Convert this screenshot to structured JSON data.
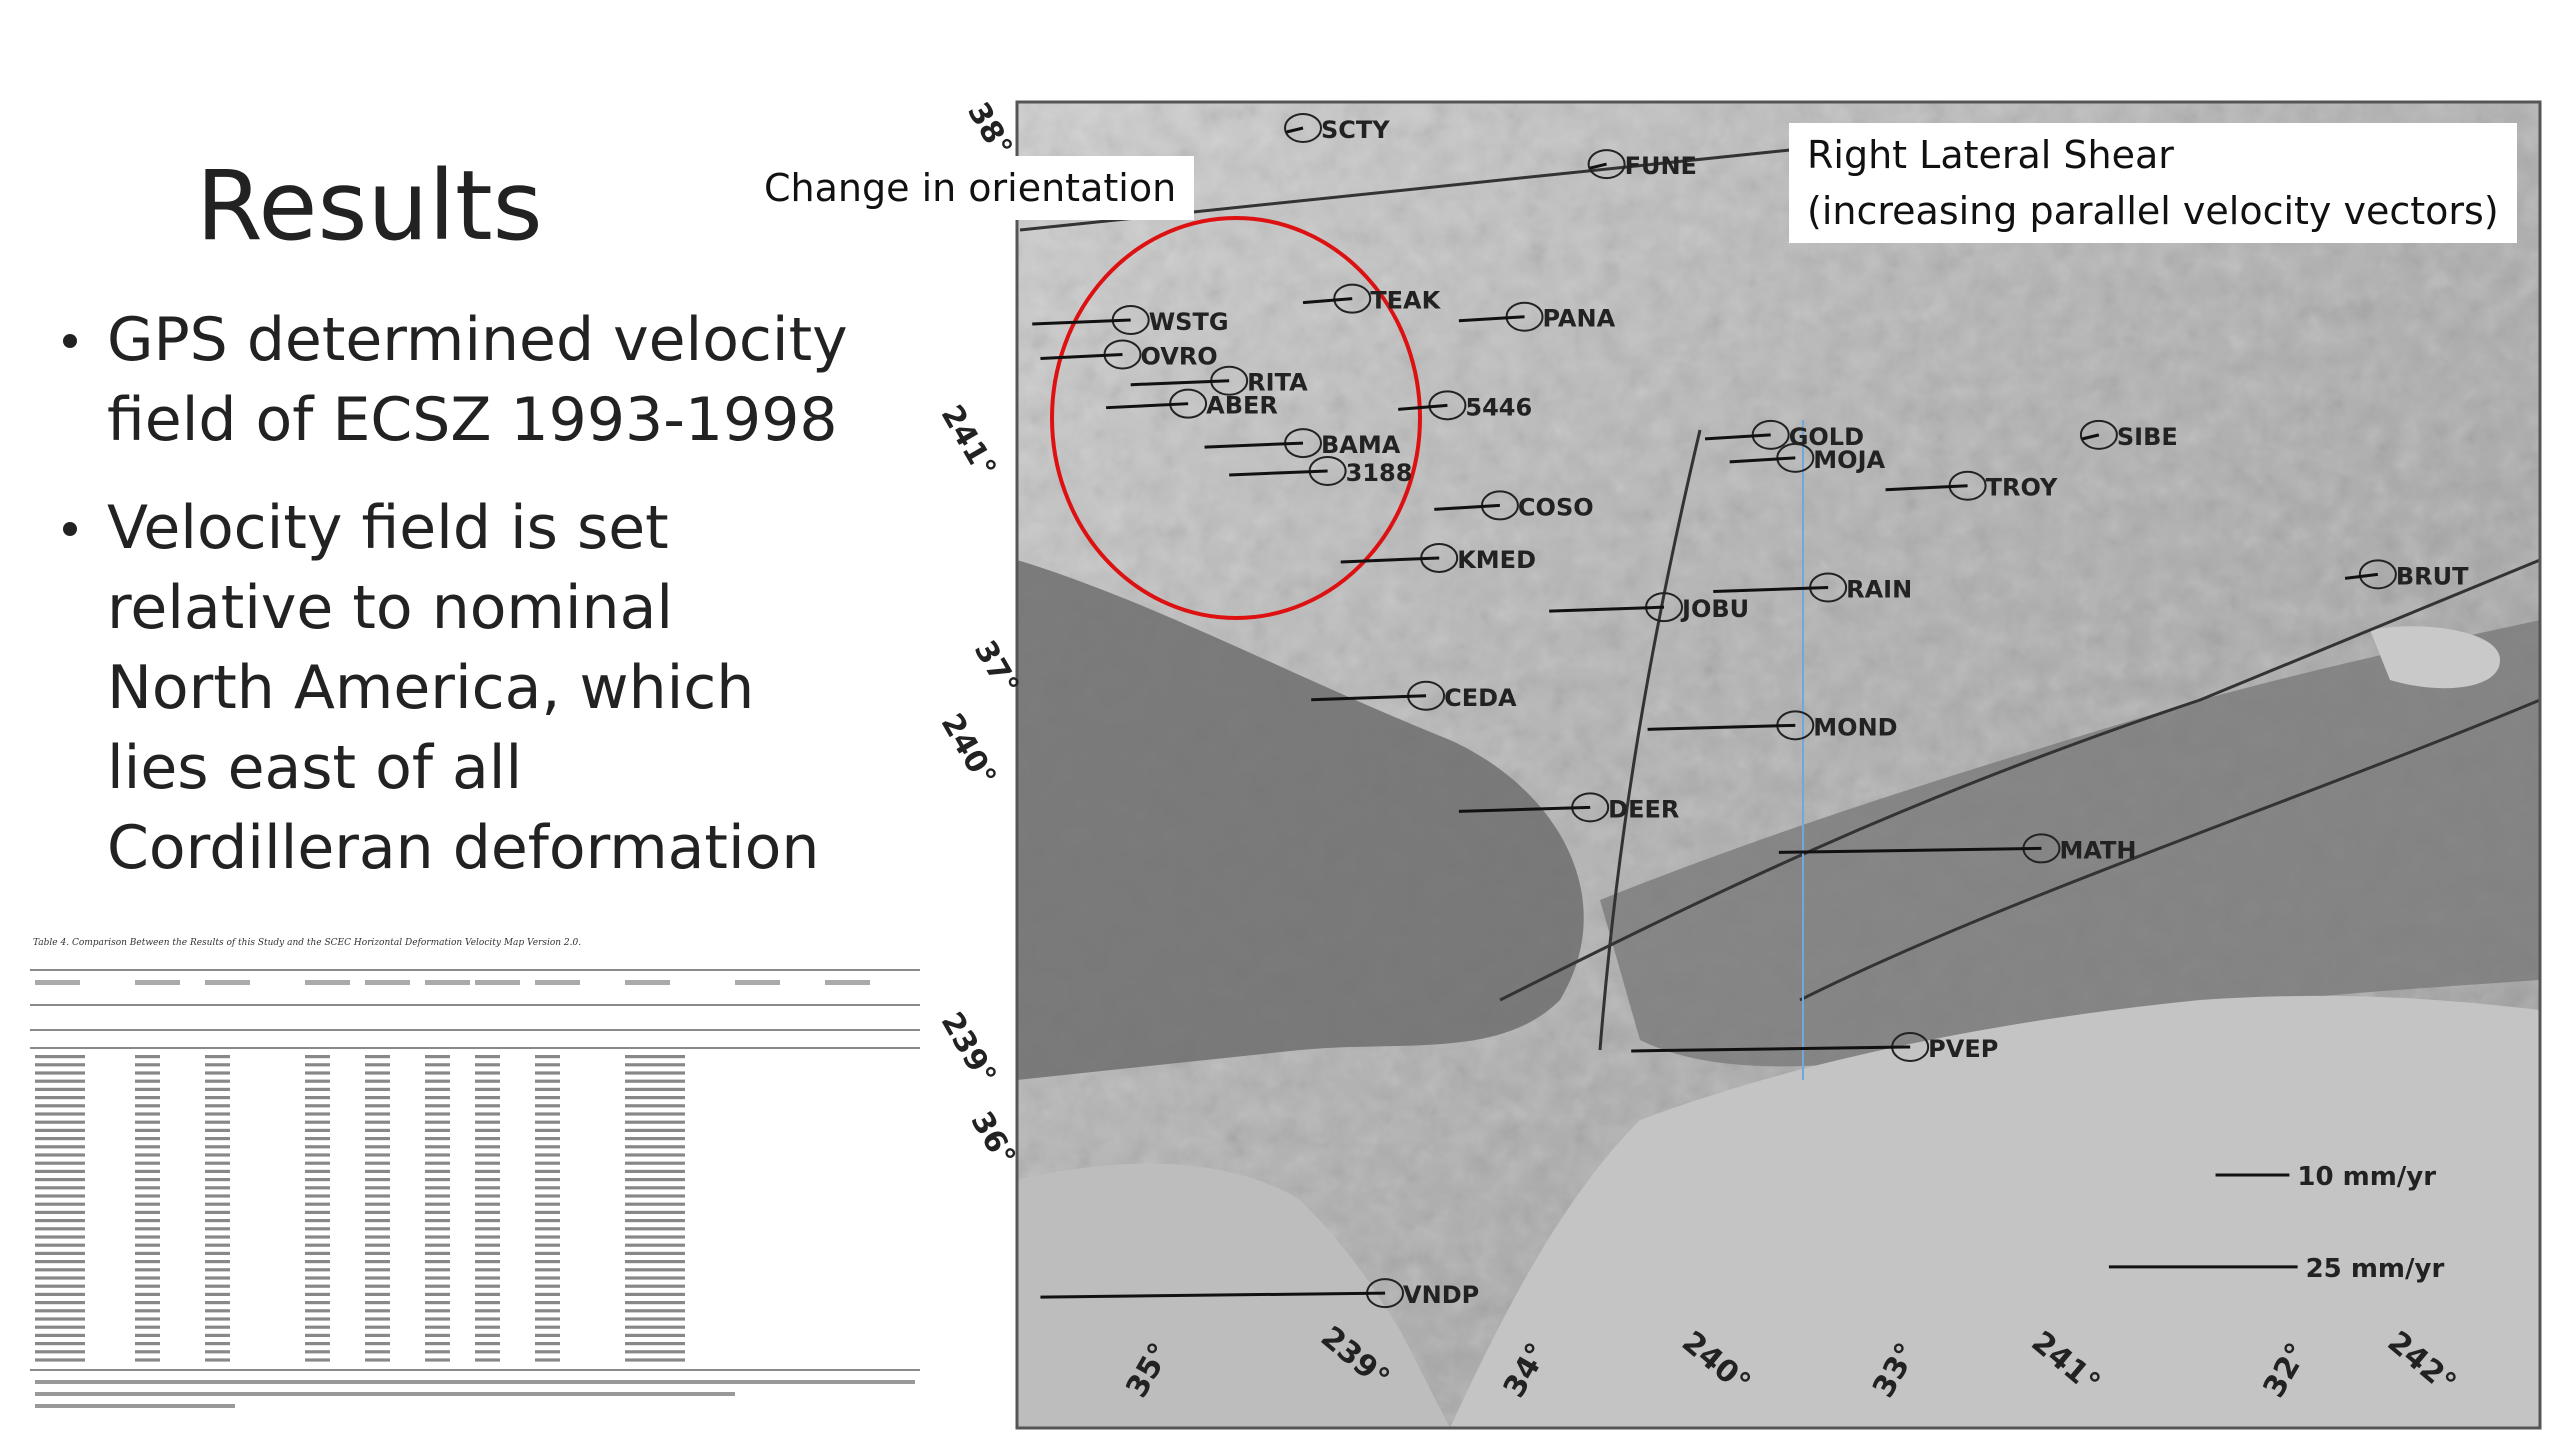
{
  "title": "Results",
  "bullets": [
    [
      "GPS determined velocity",
      "field of ECSZ 1993-1998"
    ],
    [
      "Velocity field is set",
      "relative to nominal",
      "North America, which",
      "lies east of all",
      "Cordilleran deformation"
    ]
  ],
  "callouts": [
    "Change in orientation",
    "Right Lateral Shear",
    "(increasing parallel velocity vectors)"
  ],
  "table": {
    "caption": "Table 4. Comparison Between the Results of this Study and the SCEC Horizontal Deformation Velocity Map Version 2.0."
  },
  "map": {
    "stations": [
      "SCTY",
      "FUNE",
      "TEAK",
      "PANA",
      "WSTG",
      "OVRO",
      "RITA",
      "ABER",
      "5446",
      "BAMA",
      "3188",
      "GOLD",
      "MOJA",
      "SIBE",
      "TROY",
      "COSO",
      "KMED",
      "RAIN",
      "JOBU",
      "BRUT",
      "CEDA",
      "MOND",
      "DEER",
      "MATH",
      "PVEP",
      "VNDP"
    ],
    "scale_labels": [
      "10 mm/yr",
      "25 mm/yr"
    ],
    "left_labels": [
      "38°",
      "241°",
      "37°",
      "240°",
      "239°",
      "36°"
    ],
    "bottom_labels": [
      "35°",
      "239°",
      "34°",
      "240°",
      "33°",
      "241°",
      "32°",
      "242°"
    ]
  }
}
